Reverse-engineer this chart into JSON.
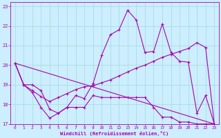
{
  "xlabel": "Windchill (Refroidissement éolien,°C)",
  "bg_color": "#cceeff",
  "line_color": "#aa00aa",
  "grid_color": "#aadddd",
  "xlim": [
    -0.5,
    23.5
  ],
  "ylim": [
    17,
    23.2
  ],
  "xticks": [
    0,
    1,
    2,
    3,
    4,
    5,
    6,
    7,
    8,
    9,
    10,
    11,
    12,
    13,
    14,
    15,
    16,
    17,
    18,
    19,
    20,
    21,
    22,
    23
  ],
  "yticks": [
    17,
    18,
    19,
    20,
    21,
    22,
    23
  ],
  "line1_x": [
    0,
    1,
    2,
    3,
    4,
    5,
    6,
    7,
    8,
    9,
    10,
    11,
    12,
    13,
    14,
    15,
    16,
    17,
    18,
    19,
    20,
    21,
    22,
    23
  ],
  "line1_y": [
    20.1,
    19.0,
    18.6,
    17.85,
    17.3,
    17.55,
    17.85,
    18.45,
    18.3,
    19.05,
    20.5,
    21.55,
    21.8,
    22.8,
    22.3,
    20.65,
    20.7,
    22.1,
    20.65,
    20.2,
    20.15,
    17.55,
    18.45,
    17.0
  ],
  "line2_x": [
    0,
    1,
    2,
    3,
    4,
    5,
    6,
    7,
    8,
    9,
    10,
    11,
    12,
    13,
    14,
    15,
    16,
    17,
    18,
    19,
    20,
    21,
    22,
    23
  ],
  "line2_y": [
    20.1,
    19.0,
    18.7,
    18.4,
    18.15,
    18.35,
    18.55,
    18.75,
    18.9,
    18.95,
    19.1,
    19.25,
    19.45,
    19.65,
    19.85,
    20.0,
    20.2,
    20.4,
    20.55,
    20.7,
    20.85,
    21.15,
    20.9,
    17.0
  ],
  "line3_x": [
    0,
    23
  ],
  "line3_y": [
    20.1,
    17.0
  ],
  "line4_x": [
    0,
    1,
    2,
    3,
    4,
    5,
    6,
    7,
    8,
    9,
    10,
    11,
    12,
    13,
    14,
    15,
    16,
    17,
    18,
    19,
    20,
    21,
    22,
    23
  ],
  "line4_y": [
    20.1,
    19.0,
    19.0,
    18.7,
    17.75,
    17.55,
    17.85,
    17.85,
    17.85,
    18.45,
    18.35,
    18.35,
    18.35,
    18.35,
    18.35,
    18.35,
    17.85,
    17.35,
    17.35,
    17.1,
    17.1,
    17.0,
    17.0,
    17.0
  ]
}
